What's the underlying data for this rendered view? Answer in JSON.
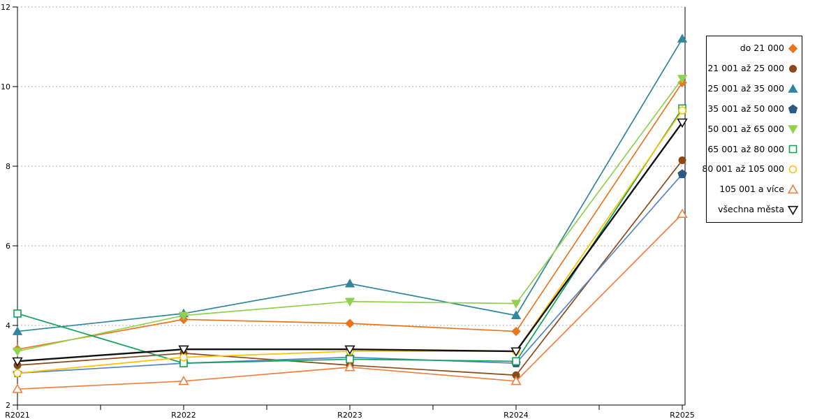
{
  "chart_data": {
    "type": "line",
    "title": "",
    "xlabel": "",
    "ylabel": "",
    "x_labels": [
      "R2021",
      "R2022",
      "R2023",
      "R2024",
      "R2025"
    ],
    "y_ticks": [
      2,
      4,
      6,
      8,
      10,
      12
    ],
    "ylim": [
      2,
      12
    ],
    "grid_values": [
      4,
      6,
      8,
      10,
      12
    ],
    "grid_style": "dashed",
    "grid_color": "#B3B3B3",
    "axis_color": "#000000",
    "background_color": "#FFFFFF",
    "legend_position": "right-outside",
    "series": [
      {
        "name": "do 21 000",
        "marker": "diamond",
        "filled": true,
        "color": "#E8761E",
        "values": [
          3.4,
          4.15,
          4.05,
          3.85,
          10.1
        ]
      },
      {
        "name": "21 001 až 25 000",
        "marker": "circle",
        "filled": true,
        "color": "#8B4A19",
        "values": [
          3.0,
          3.3,
          3.0,
          2.75,
          8.15
        ]
      },
      {
        "name": "25 001 až 35 000",
        "marker": "triangle-up",
        "filled": true,
        "color": "#31859C",
        "values": [
          3.85,
          4.3,
          5.05,
          4.25,
          11.2
        ]
      },
      {
        "name": "35 001 až 50 000",
        "marker": "pentagon",
        "filled": true,
        "color": "#2D5986",
        "line_color": "#5585C5",
        "values": [
          2.8,
          3.05,
          3.2,
          3.05,
          7.8
        ]
      },
      {
        "name": "50 001 až 65 000",
        "marker": "triangle-down",
        "filled": true,
        "color": "#92D050",
        "values": [
          3.35,
          4.25,
          4.6,
          4.55,
          10.2
        ]
      },
      {
        "name": "65 001 až 80 000",
        "marker": "square",
        "filled": false,
        "color": "#0FA35A",
        "values": [
          4.3,
          3.05,
          3.15,
          3.1,
          9.45
        ]
      },
      {
        "name": "80 001 až 105 000",
        "marker": "circle",
        "filled": false,
        "color": "#FFC000",
        "values": [
          2.8,
          3.2,
          3.35,
          3.35,
          9.4
        ]
      },
      {
        "name": "105 001 a více",
        "marker": "triangle-up",
        "filled": false,
        "color": "#F0803C",
        "values": [
          2.4,
          2.6,
          2.95,
          2.6,
          6.8
        ]
      },
      {
        "name": "všechna města",
        "marker": "triangle-down",
        "filled": false,
        "color": "#111111",
        "line_width": 2.4,
        "values": [
          3.1,
          3.4,
          3.4,
          3.35,
          9.1
        ]
      }
    ]
  }
}
